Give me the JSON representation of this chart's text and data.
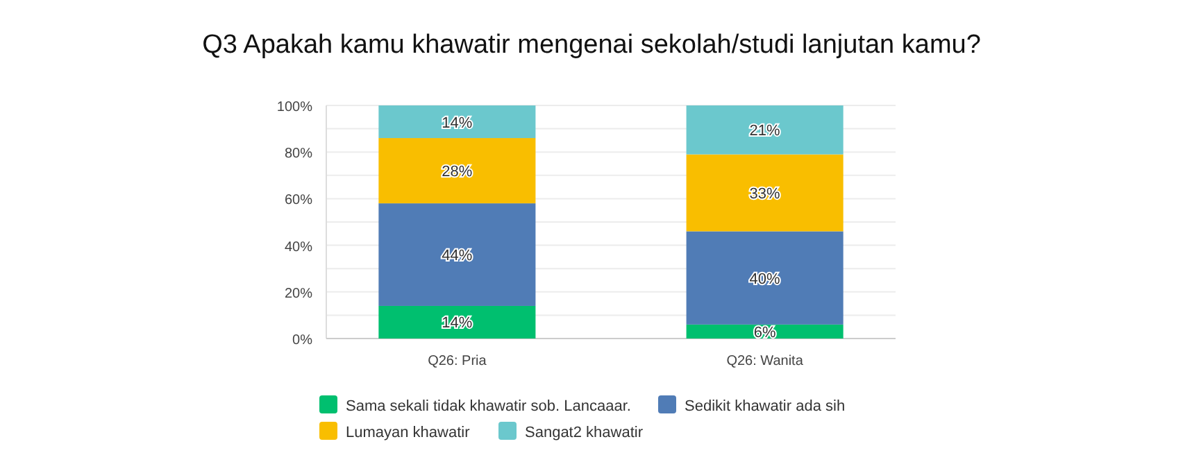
{
  "chart_data": {
    "type": "bar",
    "title": "Q3 Apakah kamu khawatir mengenai sekolah/studi lanjutan kamu?",
    "stacked": true,
    "categories": [
      "Q26: Pria",
      "Q26: Wanita"
    ],
    "series": [
      {
        "name": "Sama sekali tidak khawatir sob. Lancaaar.",
        "color": "#00bf6f",
        "values": [
          14,
          6
        ],
        "value_labels": [
          "14%",
          "6%"
        ]
      },
      {
        "name": "Sedikit khawatir ada sih",
        "color": "#507cb6",
        "values": [
          44,
          40
        ],
        "value_labels": [
          "44%",
          "40%"
        ]
      },
      {
        "name": "Lumayan khawatir",
        "color": "#f9be00",
        "values": [
          28,
          33
        ],
        "value_labels": [
          "28%",
          "33%"
        ]
      },
      {
        "name": "Sangat2 khawatir",
        "color": "#6bc8cd",
        "values": [
          14,
          21
        ],
        "value_labels": [
          "14%",
          "21%"
        ]
      }
    ],
    "ylim": [
      0,
      100
    ],
    "yticks": [
      {
        "value": 0,
        "label": "0%"
      },
      {
        "value": 10,
        "label": null
      },
      {
        "value": 20,
        "label": "20%"
      },
      {
        "value": 30,
        "label": null
      },
      {
        "value": 40,
        "label": "40%"
      },
      {
        "value": 50,
        "label": null
      },
      {
        "value": 60,
        "label": "60%"
      },
      {
        "value": 70,
        "label": null
      },
      {
        "value": 80,
        "label": "80%"
      },
      {
        "value": 90,
        "label": null
      },
      {
        "value": 100,
        "label": "100%"
      }
    ],
    "grid": "y",
    "legend": "bottom"
  }
}
